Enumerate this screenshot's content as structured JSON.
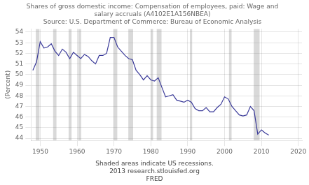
{
  "chart_data": {
    "type": "line",
    "title": [
      "Shares of gross domestic income: Compensation of employees, paid: Wage and",
      "salary accruals (A4102E1A156NBEA)"
    ],
    "subtitle": "Source: U.S. Department of Commerce: Bureau of Economic Analysis",
    "ylabel": "(Percent)",
    "annotations": [
      "Shaded areas indicate US recessions.",
      "2013 research.stlouisfed.org",
      "FRED"
    ],
    "x": [
      1948,
      1949,
      1950,
      1951,
      1952,
      1953,
      1954,
      1955,
      1956,
      1957,
      1958,
      1959,
      1960,
      1961,
      1962,
      1963,
      1964,
      1965,
      1966,
      1967,
      1968,
      1969,
      1970,
      1971,
      1972,
      1973,
      1974,
      1975,
      1976,
      1977,
      1978,
      1979,
      1980,
      1981,
      1982,
      1983,
      1984,
      1985,
      1986,
      1987,
      1988,
      1989,
      1990,
      1991,
      1992,
      1993,
      1994,
      1995,
      1996,
      1997,
      1998,
      1999,
      2000,
      2001,
      2002,
      2003,
      2004,
      2005,
      2006,
      2007,
      2008,
      2009,
      2010,
      2011,
      2012
    ],
    "values": [
      50.4,
      51.2,
      53.1,
      52.5,
      52.6,
      52.9,
      52.2,
      51.8,
      52.4,
      52.1,
      51.5,
      52.1,
      51.8,
      51.5,
      51.9,
      51.7,
      51.3,
      51.0,
      51.8,
      51.8,
      52.0,
      53.5,
      53.5,
      52.6,
      52.2,
      51.8,
      51.5,
      51.4,
      50.4,
      50.0,
      49.5,
      49.9,
      49.5,
      49.4,
      49.7,
      48.8,
      47.9,
      48.0,
      48.1,
      47.6,
      47.5,
      47.4,
      47.6,
      47.4,
      46.8,
      46.6,
      46.6,
      46.9,
      46.5,
      46.5,
      46.9,
      47.2,
      47.9,
      47.7,
      47.0,
      46.6,
      46.2,
      46.1,
      46.2,
      47.0,
      46.6,
      44.4,
      44.8,
      44.5,
      44.3
    ],
    "color": "#3a3a99",
    "recession_bands": [
      [
        1948.8,
        1949.8
      ],
      [
        1953.5,
        1954.4
      ],
      [
        1957.7,
        1958.5
      ],
      [
        1960.3,
        1961.1
      ],
      [
        1969.9,
        1970.9
      ],
      [
        1973.9,
        1975.2
      ],
      [
        1980.0,
        1980.6
      ],
      [
        1981.6,
        1982.9
      ],
      [
        1990.6,
        1991.2
      ],
      [
        2001.2,
        2001.9
      ],
      [
        2007.9,
        2009.5
      ]
    ],
    "xlim": [
      1947.5,
      2021
    ],
    "xticks": [
      1950,
      1960,
      1970,
      1980,
      1990,
      2000,
      2010,
      2020
    ],
    "ylim": [
      43.8,
      54.3
    ],
    "yticks": [
      44,
      45,
      46,
      47,
      48,
      49,
      50,
      51,
      52,
      53,
      54
    ],
    "grid": true
  }
}
